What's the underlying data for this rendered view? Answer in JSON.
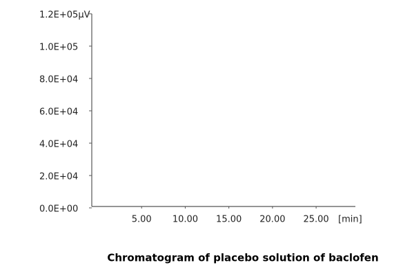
{
  "chart_data": {
    "type": "line",
    "caption": "Chromatogram of placebo solution of baclofen",
    "xlabel": "[min]",
    "xlim": [
      0,
      29.5
    ],
    "xticks": [
      {
        "value": 5,
        "label": "5.00"
      },
      {
        "value": 10,
        "label": "10.00"
      },
      {
        "value": 15,
        "label": "15.00"
      },
      {
        "value": 20,
        "label": "20.00"
      },
      {
        "value": 25,
        "label": "25.00"
      }
    ],
    "ylim": [
      0,
      120000
    ],
    "yticks": [
      {
        "value": 0,
        "label": "0.0E+00"
      },
      {
        "value": 20000,
        "label": "2.0E+04"
      },
      {
        "value": 40000,
        "label": "4.0E+04"
      },
      {
        "value": 60000,
        "label": "6.0E+04"
      },
      {
        "value": 80000,
        "label": "8.0E+04"
      },
      {
        "value": 100000,
        "label": "1.0E+05"
      },
      {
        "value": 120000,
        "label": "1.2E+05μV"
      }
    ],
    "grid": false
  }
}
